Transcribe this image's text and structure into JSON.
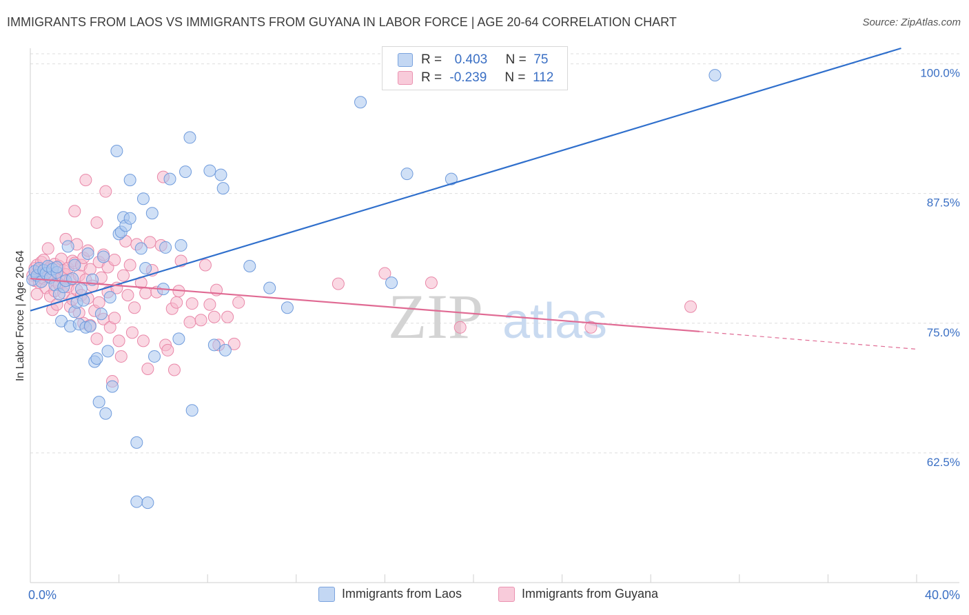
{
  "header": {
    "title": "IMMIGRANTS FROM LAOS VS IMMIGRANTS FROM GUYANA IN LABOR FORCE | AGE 20-64 CORRELATION CHART",
    "source": "Source: ZipAtlas.com"
  },
  "legend": {
    "r_label": "R =",
    "n_label": "N =",
    "rows": [
      {
        "r": "0.403",
        "n": "75"
      },
      {
        "r": "-0.239",
        "n": "112"
      }
    ]
  },
  "watermark": {
    "zip": "ZIP",
    "atlas": "atlas"
  },
  "colors": {
    "laos_fill": "#a9c6ee",
    "laos_stroke": "#6f9bdc",
    "laos_line": "#2f6fcc",
    "guyana_fill": "#f5b8cc",
    "guyana_stroke": "#e987a8",
    "guyana_line": "#e06a93",
    "tick_label": "#3a6fc4",
    "grid": "#dedede"
  },
  "chart_data": {
    "type": "scatter",
    "title": "IMMIGRANTS FROM LAOS VS IMMIGRANTS FROM GUYANA IN LABOR FORCE | AGE 20-64 CORRELATION CHART",
    "xlabel": "",
    "ylabel": "In Labor Force | Age 20-64",
    "xlim": [
      0,
      40
    ],
    "ylim": [
      50.0,
      101.5
    ],
    "x_tick_labels": [
      "0.0%",
      "40.0%"
    ],
    "y_ticks": [
      62.5,
      75.0,
      87.5,
      100.0
    ],
    "y_tick_labels": [
      "62.5%",
      "75.0%",
      "87.5%",
      "100.0%"
    ],
    "grid": true,
    "legend_position": "top-center",
    "series": [
      {
        "name": "Immigrants from Laos",
        "R": 0.403,
        "N": 75,
        "trend": {
          "x": [
            0,
            39.3
          ],
          "y": [
            76.2,
            101.5
          ]
        },
        "points": [
          [
            0.1,
            79.2
          ],
          [
            0.2,
            80.0
          ],
          [
            0.3,
            79.6
          ],
          [
            0.4,
            80.3
          ],
          [
            0.5,
            79.0
          ],
          [
            0.6,
            80.1
          ],
          [
            0.7,
            79.8
          ],
          [
            0.8,
            80.5
          ],
          [
            0.9,
            79.4
          ],
          [
            1.0,
            80.2
          ],
          [
            1.1,
            78.7
          ],
          [
            1.2,
            79.9
          ],
          [
            1.3,
            77.8
          ],
          [
            1.4,
            75.2
          ],
          [
            1.5,
            78.5
          ],
          [
            1.6,
            79.1
          ],
          [
            1.7,
            82.4
          ],
          [
            1.8,
            74.7
          ],
          [
            1.9,
            79.3
          ],
          [
            2.0,
            76.1
          ],
          [
            2.1,
            77.0
          ],
          [
            2.2,
            74.9
          ],
          [
            2.3,
            78.3
          ],
          [
            2.4,
            77.2
          ],
          [
            2.5,
            74.6
          ],
          [
            2.6,
            81.7
          ],
          [
            2.7,
            74.7
          ],
          [
            2.8,
            79.2
          ],
          [
            2.9,
            71.3
          ],
          [
            3.0,
            71.6
          ],
          [
            3.1,
            67.4
          ],
          [
            3.2,
            75.9
          ],
          [
            3.3,
            81.4
          ],
          [
            3.4,
            66.3
          ],
          [
            3.5,
            72.3
          ],
          [
            3.6,
            77.5
          ],
          [
            3.7,
            68.9
          ],
          [
            3.9,
            91.6
          ],
          [
            4.0,
            83.6
          ],
          [
            4.1,
            83.8
          ],
          [
            4.2,
            85.2
          ],
          [
            4.3,
            84.4
          ],
          [
            4.5,
            85.1
          ],
          [
            4.5,
            88.8
          ],
          [
            4.8,
            63.5
          ],
          [
            4.8,
            57.8
          ],
          [
            5.0,
            82.2
          ],
          [
            5.1,
            87.0
          ],
          [
            5.2,
            80.3
          ],
          [
            5.3,
            57.7
          ],
          [
            5.5,
            85.6
          ],
          [
            5.6,
            71.8
          ],
          [
            6.0,
            78.3
          ],
          [
            6.1,
            82.3
          ],
          [
            6.3,
            88.9
          ],
          [
            6.7,
            73.5
          ],
          [
            6.8,
            82.5
          ],
          [
            7.0,
            89.6
          ],
          [
            7.2,
            92.9
          ],
          [
            7.3,
            66.6
          ],
          [
            8.1,
            89.7
          ],
          [
            8.3,
            72.9
          ],
          [
            8.6,
            89.3
          ],
          [
            8.7,
            88.0
          ],
          [
            8.8,
            72.4
          ],
          [
            9.9,
            80.5
          ],
          [
            10.8,
            78.4
          ],
          [
            11.6,
            76.5
          ],
          [
            14.9,
            96.3
          ],
          [
            16.3,
            78.9
          ],
          [
            17.0,
            89.4
          ],
          [
            19.0,
            88.9
          ],
          [
            30.9,
            98.9
          ],
          [
            1.2,
            80.4
          ],
          [
            2.0,
            80.6
          ]
        ]
      },
      {
        "name": "Immigrants from Guyana",
        "R": -0.239,
        "N": 112,
        "trend": {
          "x": [
            0,
            30.2
          ],
          "y": [
            79.3,
            74.2
          ]
        },
        "trend_dashed": {
          "x": [
            30.2,
            40
          ],
          "y": [
            74.2,
            72.5
          ]
        },
        "points": [
          [
            0.1,
            79.6
          ],
          [
            0.2,
            80.3
          ],
          [
            0.2,
            79.1
          ],
          [
            0.3,
            80.6
          ],
          [
            0.4,
            79.9
          ],
          [
            0.4,
            78.9
          ],
          [
            0.5,
            80.2
          ],
          [
            0.5,
            80.9
          ],
          [
            0.6,
            79.3
          ],
          [
            0.6,
            81.1
          ],
          [
            0.7,
            78.4
          ],
          [
            0.7,
            80.0
          ],
          [
            0.8,
            82.2
          ],
          [
            0.8,
            79.5
          ],
          [
            0.9,
            80.4
          ],
          [
            0.9,
            77.6
          ],
          [
            1.0,
            76.3
          ],
          [
            1.0,
            79.8
          ],
          [
            1.1,
            80.7
          ],
          [
            1.1,
            78.1
          ],
          [
            1.2,
            79.0
          ],
          [
            1.2,
            76.8
          ],
          [
            1.3,
            80.5
          ],
          [
            1.3,
            78.7
          ],
          [
            1.4,
            79.4
          ],
          [
            1.4,
            81.2
          ],
          [
            1.5,
            80.1
          ],
          [
            1.5,
            77.9
          ],
          [
            1.6,
            79.7
          ],
          [
            1.6,
            83.1
          ],
          [
            1.7,
            80.3
          ],
          [
            1.7,
            78.5
          ],
          [
            1.8,
            76.6
          ],
          [
            1.8,
            79.2
          ],
          [
            1.9,
            81.0
          ],
          [
            1.9,
            77.3
          ],
          [
            2.0,
            85.8
          ],
          [
            2.0,
            80.8
          ],
          [
            2.1,
            78.2
          ],
          [
            2.1,
            82.6
          ],
          [
            2.2,
            79.6
          ],
          [
            2.2,
            76.0
          ],
          [
            2.3,
            80.6
          ],
          [
            2.3,
            77.7
          ],
          [
            2.4,
            75.0
          ],
          [
            2.4,
            81.3
          ],
          [
            2.5,
            88.8
          ],
          [
            2.5,
            79.2
          ],
          [
            2.6,
            77.4
          ],
          [
            2.6,
            82.0
          ],
          [
            2.7,
            80.2
          ],
          [
            2.7,
            74.8
          ],
          [
            2.8,
            78.6
          ],
          [
            2.9,
            76.2
          ],
          [
            3.0,
            84.7
          ],
          [
            3.0,
            73.5
          ],
          [
            3.1,
            80.9
          ],
          [
            3.1,
            77.0
          ],
          [
            3.2,
            79.4
          ],
          [
            3.3,
            81.6
          ],
          [
            3.3,
            75.4
          ],
          [
            3.4,
            87.7
          ],
          [
            3.5,
            80.4
          ],
          [
            3.5,
            78.0
          ],
          [
            3.6,
            74.6
          ],
          [
            3.7,
            69.4
          ],
          [
            3.8,
            81.1
          ],
          [
            3.8,
            75.5
          ],
          [
            3.9,
            78.4
          ],
          [
            4.0,
            73.3
          ],
          [
            4.1,
            71.8
          ],
          [
            4.2,
            79.6
          ],
          [
            4.3,
            82.9
          ],
          [
            4.4,
            77.7
          ],
          [
            4.5,
            80.6
          ],
          [
            4.6,
            74.1
          ],
          [
            4.7,
            76.5
          ],
          [
            4.8,
            82.6
          ],
          [
            5.0,
            78.9
          ],
          [
            5.1,
            73.3
          ],
          [
            5.2,
            77.9
          ],
          [
            5.3,
            70.6
          ],
          [
            5.4,
            82.8
          ],
          [
            5.5,
            80.1
          ],
          [
            5.7,
            78.0
          ],
          [
            5.9,
            82.5
          ],
          [
            6.0,
            89.1
          ],
          [
            6.1,
            72.9
          ],
          [
            6.2,
            72.4
          ],
          [
            6.4,
            76.4
          ],
          [
            6.5,
            70.5
          ],
          [
            6.6,
            77.0
          ],
          [
            6.7,
            78.1
          ],
          [
            6.8,
            81.0
          ],
          [
            7.2,
            75.1
          ],
          [
            7.3,
            76.9
          ],
          [
            7.7,
            75.3
          ],
          [
            7.9,
            80.6
          ],
          [
            8.1,
            76.8
          ],
          [
            8.3,
            75.6
          ],
          [
            8.4,
            78.2
          ],
          [
            8.5,
            72.9
          ],
          [
            8.9,
            75.6
          ],
          [
            9.2,
            73.0
          ],
          [
            9.4,
            77.0
          ],
          [
            13.9,
            78.8
          ],
          [
            16.0,
            79.8
          ],
          [
            19.4,
            74.6
          ],
          [
            25.3,
            74.6
          ],
          [
            18.1,
            78.9
          ],
          [
            29.8,
            76.6
          ],
          [
            0.3,
            77.8
          ]
        ]
      }
    ]
  },
  "bottom_legend": [
    "Immigrants from Laos",
    "Immigrants from Guyana"
  ]
}
